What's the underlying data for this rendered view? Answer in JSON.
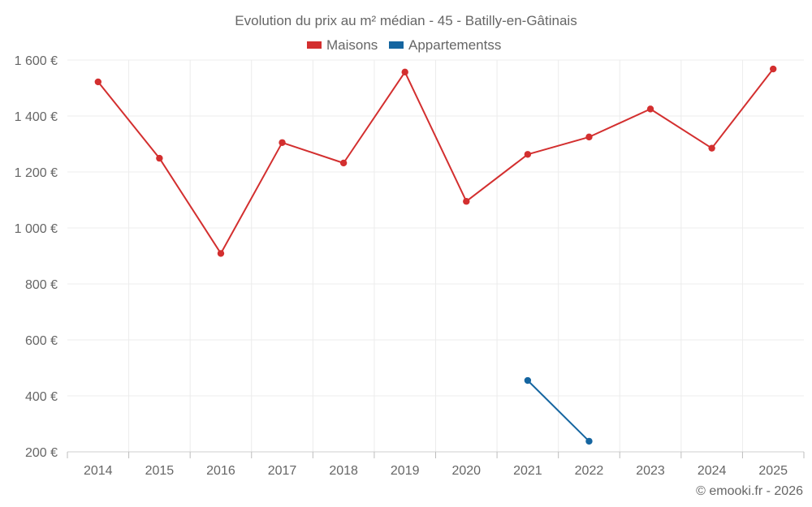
{
  "chart_data": {
    "type": "line",
    "title": "Evolution du prix au m² médian - 45 - Batilly-en-Gâtinais",
    "categories": [
      "2014",
      "2015",
      "2016",
      "2017",
      "2018",
      "2019",
      "2020",
      "2021",
      "2022",
      "2023",
      "2024",
      "2025"
    ],
    "series": [
      {
        "name": "Maisons",
        "color": "#d32f2f",
        "values": [
          1522,
          1249,
          909,
          1305,
          1232,
          1557,
          1095,
          1263,
          1325,
          1425,
          1285,
          1568
        ]
      },
      {
        "name": "Appartementss",
        "color": "#1565a0",
        "values": [
          null,
          null,
          null,
          null,
          null,
          null,
          null,
          455,
          238,
          null,
          null,
          null
        ]
      }
    ],
    "ylim": [
      200,
      1600
    ],
    "yticks": [
      200,
      400,
      600,
      800,
      1000,
      1200,
      1400,
      1600
    ],
    "ytick_labels": [
      "200 €",
      "400 €",
      "600 €",
      "800 €",
      "1 000 €",
      "1 200 €",
      "1 400 €",
      "1 600 €"
    ],
    "xlabel": "",
    "ylabel": "",
    "grid": true,
    "legend_position": "top-center",
    "credit": "© emooki.fr - 2026"
  }
}
